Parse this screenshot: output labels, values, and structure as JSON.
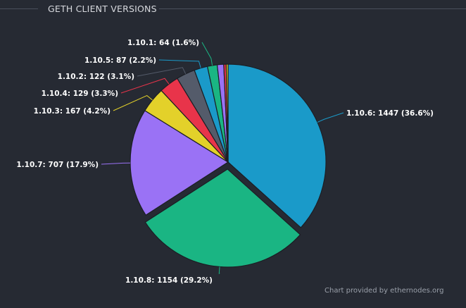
{
  "header": {
    "title": "GETH CLIENT VERSIONS"
  },
  "credit": "Chart provided by ethernodes.org",
  "chart_data": {
    "type": "pie",
    "title": "GETH CLIENT VERSIONS",
    "slices": [
      {
        "label": "1.10.6",
        "value": 1447,
        "percent": "36.6%",
        "color": "#1a9ac9",
        "display": "1.10.6: 1447 (36.6%)"
      },
      {
        "label": "1.10.8",
        "value": 1154,
        "percent": "29.2%",
        "color": "#1ab583",
        "display": "1.10.8: 1154 (29.2%)",
        "exploded": true
      },
      {
        "label": "1.10.7",
        "value": 707,
        "percent": "17.9%",
        "color": "#9a72f5",
        "display": "1.10.7: 707 (17.9%)"
      },
      {
        "label": "1.10.3",
        "value": 167,
        "percent": "4.2%",
        "color": "#e3d12a",
        "display": "1.10.3: 167 (4.2%)"
      },
      {
        "label": "1.10.4",
        "value": 129,
        "percent": "3.3%",
        "color": "#e8344a",
        "display": "1.10.4: 129 (3.3%)"
      },
      {
        "label": "1.10.2",
        "value": 122,
        "percent": "3.1%",
        "color": "#545b6a",
        "display": "1.10.2: 122 (3.1%)"
      },
      {
        "label": "1.10.5",
        "value": 87,
        "percent": "2.2%",
        "color": "#1a9ac9",
        "display": "1.10.5: 87 (2.2%)"
      },
      {
        "label": "1.10.1",
        "value": 64,
        "percent": "1.6%",
        "color": "#1ab583",
        "display": "1.10.1: 64 (1.6%)"
      },
      {
        "label": "other",
        "value": 42,
        "color": "#9a72f5"
      },
      {
        "label": "other",
        "value": 16,
        "color": "#e8344a"
      },
      {
        "label": "other",
        "value": 12,
        "color": "#e3d12a"
      }
    ]
  }
}
